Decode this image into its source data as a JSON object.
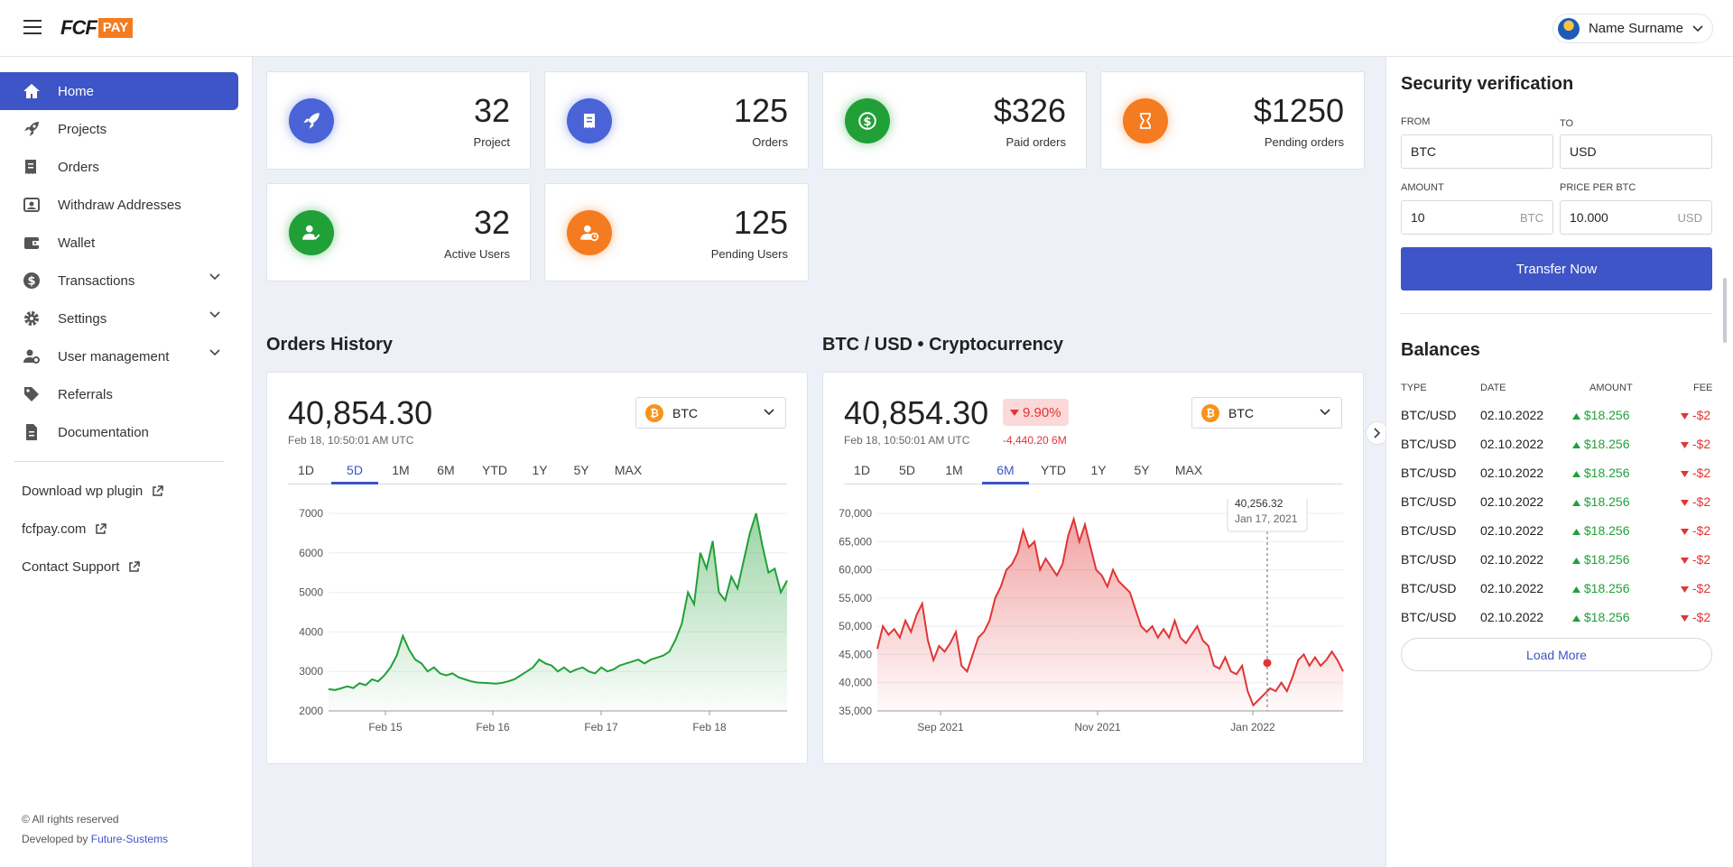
{
  "header": {
    "logo_main": "FCF",
    "logo_badge": "PAY",
    "user_name": "Name Surname"
  },
  "sidebar": {
    "items": [
      {
        "label": "Home",
        "icon": "home-icon",
        "active": true
      },
      {
        "label": "Projects",
        "icon": "rocket-icon"
      },
      {
        "label": "Orders",
        "icon": "receipt-icon"
      },
      {
        "label": "Withdraw Addresses",
        "icon": "address-icon"
      },
      {
        "label": "Wallet",
        "icon": "wallet-icon"
      },
      {
        "label": "Transactions",
        "icon": "dollar-icon",
        "expandable": true
      },
      {
        "label": "Settings",
        "icon": "gear-icon",
        "expandable": true
      },
      {
        "label": "User management",
        "icon": "user-gear-icon",
        "expandable": true
      },
      {
        "label": "Referrals",
        "icon": "tag-icon"
      },
      {
        "label": "Documentation",
        "icon": "document-icon"
      }
    ],
    "links": [
      {
        "label": "Download wp plugin"
      },
      {
        "label": "fcfpay.com"
      },
      {
        "label": "Contact Support"
      }
    ],
    "copyright": "© All rights reserved",
    "developed_by": "Developed by",
    "developer": "Future-Sustems"
  },
  "stats": [
    {
      "value": "32",
      "label": "Project",
      "icon": "rocket-icon",
      "color": "#4a63d6"
    },
    {
      "value": "125",
      "label": "Orders",
      "icon": "receipt-icon",
      "color": "#4a63d6"
    },
    {
      "value": "$326",
      "label": "Paid orders",
      "icon": "dollar-icon",
      "color": "#21a038"
    },
    {
      "value": "$1250",
      "label": "Pending orders",
      "icon": "hourglass-icon",
      "color": "#f47b20"
    },
    {
      "value": "32",
      "label": "Active Users",
      "icon": "user-check-icon",
      "color": "#21a038"
    },
    {
      "value": "125",
      "label": "Pending Users",
      "icon": "user-clock-icon",
      "color": "#f47b20"
    }
  ],
  "orders_history": {
    "title": "Orders History",
    "value": "40,854.30",
    "timestamp": "Feb 18, 10:50:01 AM UTC",
    "coin": "BTC",
    "tabs": [
      "1D",
      "5D",
      "1M",
      "6M",
      "YTD",
      "1Y",
      "5Y",
      "MAX"
    ],
    "active_tab": "5D"
  },
  "crypto": {
    "title": "BTC / USD • Cryptocurrency",
    "value": "40,854.30",
    "change": "9.90%",
    "change_sub": "-4,440.20 6M",
    "timestamp": "Feb 18, 10:50:01 AM UTC",
    "coin": "BTC",
    "tabs": [
      "1D",
      "5D",
      "1M",
      "6M",
      "YTD",
      "1Y",
      "5Y",
      "MAX"
    ],
    "active_tab": "6M",
    "tooltip_value": "40,256.32",
    "tooltip_date": "Jan 17, 2021"
  },
  "chart_data": [
    {
      "type": "area",
      "title": "Orders History",
      "color": "#21a038",
      "x_ticks": [
        "Feb 15",
        "Feb 16",
        "Feb 17",
        "Feb 18"
      ],
      "y_ticks": [
        "7000",
        "6000",
        "5000",
        "4000",
        "3000",
        "2000"
      ],
      "ylim": [
        2000,
        7000
      ],
      "y": [
        2550,
        2530,
        2570,
        2620,
        2580,
        2700,
        2650,
        2800,
        2750,
        2900,
        3100,
        3400,
        3900,
        3550,
        3300,
        3200,
        3000,
        3100,
        2950,
        2900,
        2950,
        2850,
        2800,
        2750,
        2720,
        2710,
        2700,
        2690,
        2710,
        2750,
        2800,
        2900,
        3000,
        3100,
        3300,
        3200,
        3150,
        3000,
        3100,
        2980,
        3050,
        3100,
        3000,
        2950,
        3100,
        3000,
        3050,
        3150,
        3200,
        3250,
        3300,
        3200,
        3300,
        3350,
        3400,
        3500,
        3800,
        4200,
        5000,
        4700,
        6000,
        5600,
        6300,
        5000,
        4800,
        5400,
        5100,
        5800,
        6500,
        7000,
        6200,
        5500,
        5600,
        5000,
        5300
      ]
    },
    {
      "type": "area",
      "title": "BTC / USD • Cryptocurrency",
      "color": "#e03535",
      "x_ticks": [
        "Sep 2021",
        "Nov 2021",
        "Jan 2022"
      ],
      "y_ticks": [
        "70,000",
        "65,000",
        "60,000",
        "55,000",
        "50,000",
        "45,000",
        "40,000",
        "35,000"
      ],
      "ylim": [
        35000,
        70000
      ],
      "y": [
        46000,
        50000,
        48500,
        49500,
        48000,
        51000,
        49000,
        52000,
        54000,
        47500,
        44000,
        46500,
        45500,
        47000,
        49000,
        43000,
        42000,
        45000,
        48000,
        49000,
        51000,
        55000,
        57000,
        60000,
        61000,
        63000,
        67000,
        64000,
        65000,
        60000,
        62000,
        60500,
        59000,
        61000,
        66000,
        69000,
        65000,
        68000,
        64000,
        60000,
        59000,
        57000,
        60000,
        58000,
        57000,
        56000,
        53000,
        50000,
        49000,
        50000,
        48000,
        49500,
        48000,
        51000,
        48000,
        47000,
        48500,
        50000,
        47500,
        46500,
        43000,
        42500,
        44500,
        42000,
        41500,
        43000,
        38500,
        36000,
        37000,
        38000,
        39000,
        38500,
        40000,
        38500,
        41000,
        44000,
        45000,
        43000,
        44500,
        43000,
        44000,
        45500,
        44000,
        42000
      ]
    }
  ],
  "security": {
    "title": "Security verification",
    "from_label": "From",
    "to_label": "To",
    "from_value": "BTC",
    "to_value": "USD",
    "amount_label": "Amount",
    "price_label": "Price per BTC",
    "amount_value": "10",
    "amount_unit": "BTC",
    "price_value": "10.000",
    "price_unit": "USD",
    "button": "Transfer Now"
  },
  "balances": {
    "title": "Balances",
    "columns": [
      "TYPE",
      "DATE",
      "AMOUNT",
      "FEE"
    ],
    "rows": [
      {
        "type": "BTC/USD",
        "date": "02.10.2022",
        "amount": "$18.256",
        "fee": "-$2"
      },
      {
        "type": "BTC/USD",
        "date": "02.10.2022",
        "amount": "$18.256",
        "fee": "-$2"
      },
      {
        "type": "BTC/USD",
        "date": "02.10.2022",
        "amount": "$18.256",
        "fee": "-$2"
      },
      {
        "type": "BTC/USD",
        "date": "02.10.2022",
        "amount": "$18.256",
        "fee": "-$2"
      },
      {
        "type": "BTC/USD",
        "date": "02.10.2022",
        "amount": "$18.256",
        "fee": "-$2"
      },
      {
        "type": "BTC/USD",
        "date": "02.10.2022",
        "amount": "$18.256",
        "fee": "-$2"
      },
      {
        "type": "BTC/USD",
        "date": "02.10.2022",
        "amount": "$18.256",
        "fee": "-$2"
      },
      {
        "type": "BTC/USD",
        "date": "02.10.2022",
        "amount": "$18.256",
        "fee": "-$2"
      }
    ],
    "load_more": "Load More"
  }
}
